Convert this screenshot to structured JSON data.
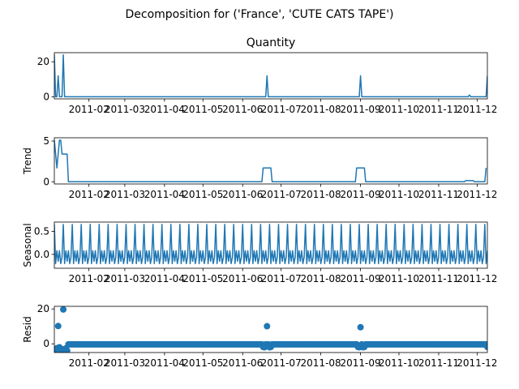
{
  "figure": {
    "suptitle": "Decomposition for ('France', 'CUTE CATS TAPE')"
  },
  "colors": {
    "series": "#1f77b4",
    "axis": "#000000",
    "background": "#ffffff"
  },
  "x_axis": {
    "start": "2011-01-05",
    "end": "2011-12-09",
    "ticks": [
      {
        "date": "2011-02-01",
        "label": "2011-02"
      },
      {
        "date": "2011-03-01",
        "label": "2011-03"
      },
      {
        "date": "2011-04-01",
        "label": "2011-04"
      },
      {
        "date": "2011-05-01",
        "label": "2011-05"
      },
      {
        "date": "2011-06-01",
        "label": "2011-06"
      },
      {
        "date": "2011-07-01",
        "label": "2011-07"
      },
      {
        "date": "2011-08-01",
        "label": "2011-08"
      },
      {
        "date": "2011-09-01",
        "label": "2011-09"
      },
      {
        "date": "2011-10-01",
        "label": "2011-10"
      },
      {
        "date": "2011-11-01",
        "label": "2011-11"
      },
      {
        "date": "2011-12-01",
        "label": "2011-12"
      }
    ]
  },
  "chart_data": [
    {
      "type": "line",
      "title": "Quantity",
      "ylabel": "",
      "ylim": [
        -1.2,
        25.2
      ],
      "yticks": [
        0,
        20
      ],
      "points": [
        [
          "2011-01-05",
          24
        ],
        [
          "2011-01-06",
          0
        ],
        [
          "2011-01-07",
          0
        ],
        [
          "2011-01-08",
          12
        ],
        [
          "2011-01-09",
          0
        ],
        [
          "2011-01-10",
          0
        ],
        [
          "2011-01-11",
          0
        ],
        [
          "2011-01-12",
          24
        ],
        [
          "2011-01-13",
          0
        ],
        [
          "2011-06-19",
          0
        ],
        [
          "2011-06-20",
          12
        ],
        [
          "2011-06-21",
          0
        ],
        [
          "2011-08-31",
          0
        ],
        [
          "2011-09-01",
          12
        ],
        [
          "2011-09-02",
          0
        ],
        [
          "2011-11-24",
          0
        ],
        [
          "2011-11-25",
          1
        ],
        [
          "2011-11-26",
          0
        ],
        [
          "2011-12-08",
          0
        ],
        [
          "2011-12-09",
          12
        ]
      ]
    },
    {
      "type": "line",
      "title": "",
      "ylabel": "Trend",
      "ylim": [
        -0.27,
        5.4
      ],
      "yticks": [
        0,
        5
      ],
      "points": [
        [
          "2011-01-05",
          5.1
        ],
        [
          "2011-01-06",
          3.4
        ],
        [
          "2011-01-07",
          1.7
        ],
        [
          "2011-01-08",
          3.4
        ],
        [
          "2011-01-09",
          5.1
        ],
        [
          "2011-01-10",
          5.1
        ],
        [
          "2011-01-11",
          3.4
        ],
        [
          "2011-01-15",
          3.4
        ],
        [
          "2011-01-16",
          0
        ],
        [
          "2011-06-16",
          0
        ],
        [
          "2011-06-17",
          1.7
        ],
        [
          "2011-06-23",
          1.7
        ],
        [
          "2011-06-24",
          0
        ],
        [
          "2011-08-28",
          0
        ],
        [
          "2011-08-29",
          1.7
        ],
        [
          "2011-09-04",
          1.7
        ],
        [
          "2011-09-05",
          0
        ],
        [
          "2011-11-21",
          0
        ],
        [
          "2011-11-22",
          0.14
        ],
        [
          "2011-11-28",
          0.14
        ],
        [
          "2011-11-29",
          0
        ],
        [
          "2011-12-06",
          0
        ],
        [
          "2011-12-07",
          0
        ],
        [
          "2011-12-08",
          1.7
        ]
      ]
    },
    {
      "type": "line",
      "title": "",
      "ylabel": "Seasonal",
      "ylim": [
        -0.3,
        0.7
      ],
      "yticks": [
        0.0,
        0.5
      ],
      "yticklabels": [
        "0.0",
        "0.5"
      ],
      "period": 7,
      "pattern": [
        0.65,
        -0.2,
        0.08,
        -0.15,
        0.08,
        -0.2,
        -0.06
      ]
    },
    {
      "type": "scatter",
      "title": "",
      "ylabel": "Resid",
      "ylim": [
        -5.0,
        21.5
      ],
      "yticks": [
        0,
        20
      ],
      "baseline": -0.3,
      "outliers": [
        [
          "2011-01-05",
          -4.0
        ],
        [
          "2011-01-06",
          -3.2
        ],
        [
          "2011-01-07",
          -2.5
        ],
        [
          "2011-01-08",
          10.2
        ],
        [
          "2011-01-09",
          -2.0
        ],
        [
          "2011-01-10",
          -3.8
        ],
        [
          "2011-01-11",
          -3.0
        ],
        [
          "2011-01-12",
          19.7
        ],
        [
          "2011-01-13",
          -3.5
        ],
        [
          "2011-01-14",
          -2.6
        ],
        [
          "2011-01-15",
          -3.9
        ],
        [
          "2011-06-17",
          -1.8
        ],
        [
          "2011-06-18",
          -2.0
        ],
        [
          "2011-06-20",
          10.1
        ],
        [
          "2011-06-22",
          -2.0
        ],
        [
          "2011-06-23",
          -1.8
        ],
        [
          "2011-08-30",
          -1.8
        ],
        [
          "2011-08-31",
          -2.0
        ],
        [
          "2011-09-01",
          9.5
        ],
        [
          "2011-09-03",
          -2.0
        ],
        [
          "2011-09-04",
          -1.8
        ],
        [
          "2011-12-09",
          -1.8
        ]
      ]
    }
  ]
}
